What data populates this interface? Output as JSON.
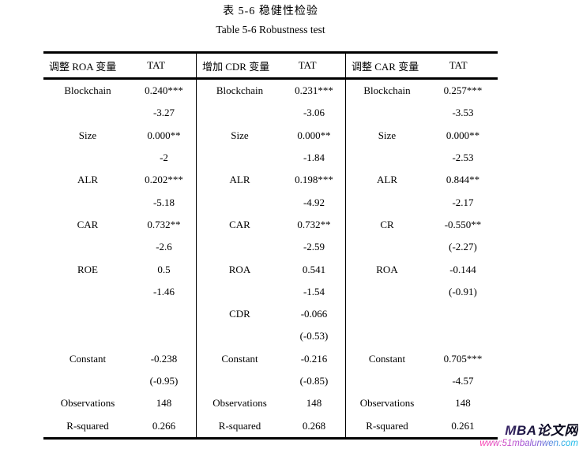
{
  "doc": {
    "title_zh": "表 5-6  稳健性检验",
    "title_en": "Table 5-6 Robustness test"
  },
  "table": {
    "groups": [
      {
        "label": "调整 ROA 变量",
        "tat": "TAT"
      },
      {
        "label": "增加 CDR 变量",
        "tat": "TAT"
      },
      {
        "label": "调整 CAR 变量",
        "tat": "TAT"
      }
    ],
    "rows": [
      [
        "Blockchain",
        "0.240***",
        "Blockchain",
        "0.231***",
        "Blockchain",
        "0.257***"
      ],
      [
        "",
        "-3.27",
        "",
        "-3.06",
        "",
        "-3.53"
      ],
      [
        "Size",
        "0.000**",
        "Size",
        "0.000**",
        "Size",
        "0.000**"
      ],
      [
        "",
        "-2",
        "",
        "-1.84",
        "",
        "-2.53"
      ],
      [
        "ALR",
        "0.202***",
        "ALR",
        "0.198***",
        "ALR",
        "0.844**"
      ],
      [
        "",
        "-5.18",
        "",
        "-4.92",
        "",
        "-2.17"
      ],
      [
        "CAR",
        "0.732**",
        "CAR",
        "0.732**",
        "CR",
        "-0.550**"
      ],
      [
        "",
        "-2.6",
        "",
        "-2.59",
        "",
        "(-2.27)"
      ],
      [
        "ROE",
        "0.5",
        "ROA",
        "0.541",
        "ROA",
        "-0.144"
      ],
      [
        "",
        "-1.46",
        "",
        "-1.54",
        "",
        "(-0.91)"
      ],
      [
        "",
        "",
        "CDR",
        "-0.066",
        "",
        ""
      ],
      [
        "",
        "",
        "",
        "(-0.53)",
        "",
        ""
      ],
      [
        "Constant",
        "-0.238",
        "Constant",
        "-0.216",
        "Constant",
        "0.705***"
      ],
      [
        "",
        "(-0.95)",
        "",
        "(-0.85)",
        "",
        "-4.57"
      ],
      [
        "Observations",
        "148",
        "Observations",
        "148",
        "Observations",
        "148"
      ],
      [
        "R-squared",
        "0.266",
        "R-squared",
        "0.268",
        "R-squared",
        "0.261"
      ]
    ]
  },
  "watermark": {
    "brand": "MBA论文网",
    "url": "www:51mbalunwen.com",
    "brand_color": "#0a0a1e",
    "url_gradient_start": "#ff3fae",
    "url_gradient_end": "#1ab8e8"
  }
}
